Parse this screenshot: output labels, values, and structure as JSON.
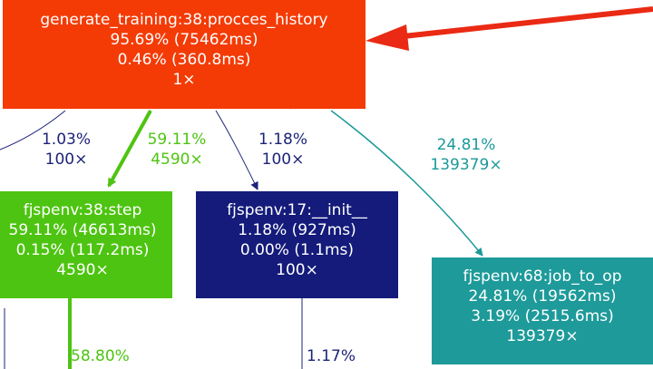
{
  "colors": {
    "main": "#f43b06",
    "step": "#4dc411",
    "init": "#141b7a",
    "job": "#1e9a9a",
    "edge_red": "#ea2a14",
    "edge_green": "#4dc411",
    "edge_navy": "#1d2378",
    "edge_teal": "#1b9999"
  },
  "nodes": {
    "main": {
      "title": "generate_training:38:procces_history",
      "total": "95.69% (75462ms)",
      "self": "0.46% (360.8ms)",
      "calls": "1×"
    },
    "step": {
      "title": "fjspenv:38:step",
      "total": "59.11% (46613ms)",
      "self": "0.15% (117.2ms)",
      "calls": "4590×"
    },
    "init": {
      "title": "fjspenv:17:__init__",
      "total": "1.18% (927ms)",
      "self": "0.00% (1.1ms)",
      "calls": "100×"
    },
    "job": {
      "title": "fjspenv:68:job_to_op",
      "total": "24.81% (19562ms)",
      "self": "3.19% (2515.6ms)",
      "calls": "139379×"
    }
  },
  "edges": {
    "left_navy": {
      "pct": "1.03%",
      "calls": "100×"
    },
    "to_step": {
      "pct": "59.11%",
      "calls": "4590×"
    },
    "to_init": {
      "pct": "1.18%",
      "calls": "100×"
    },
    "to_job": {
      "pct": "24.81%",
      "calls": "139379×"
    },
    "below_step": {
      "pct": "58.80%"
    },
    "below_init": {
      "pct": "1.17%"
    }
  }
}
